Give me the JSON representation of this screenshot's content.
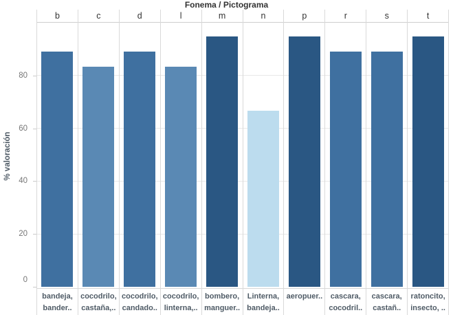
{
  "title": "Fonema / Pictograma",
  "y_axis": {
    "label": "% valoración",
    "ticks": [
      80,
      60,
      40,
      20,
      0
    ]
  },
  "chart_data": {
    "type": "bar",
    "title": "Fonema / Pictograma",
    "xlabel": "",
    "ylabel": "% valoración",
    "ylim": [
      0,
      100
    ],
    "grid": "on",
    "legend": "none",
    "categories": [
      "b",
      "c",
      "d",
      "l",
      "m",
      "n",
      "p",
      "r",
      "s",
      "t"
    ],
    "values": [
      89,
      83.3,
      89,
      83.3,
      94.7,
      66.7,
      94.7,
      89,
      89,
      94.7
    ],
    "bar_colors": [
      "#3f70a0",
      "#5a89b4",
      "#3f70a0",
      "#5a89b4",
      "#2a5783",
      "#bcdcee",
      "#2a5783",
      "#3f70a0",
      "#3f70a0",
      "#2a5783"
    ],
    "x_tick_labels": [
      [
        "bandeja,",
        "bander.."
      ],
      [
        "cocodrilo,",
        "castaña,.."
      ],
      [
        "cocodrilo,",
        "candado.."
      ],
      [
        "cocodrilo,",
        "linterna,.."
      ],
      [
        "bombero,",
        "manguer.."
      ],
      [
        "Linterna,",
        "bandeja.."
      ],
      [
        "aeropuer..",
        ""
      ],
      [
        "cascara,",
        "cocodril.."
      ],
      [
        "cascara,",
        "castañ.."
      ],
      [
        "ratoncito,",
        "insecto, .."
      ]
    ]
  },
  "colors": {
    "dark_bar": "#2a5783",
    "medium_bar": "#3f70a0",
    "medium_light_bar": "#5a89b4",
    "light_bar": "#bcdcee",
    "gridline": "#e8e8e8",
    "divider": "#d9d9d9",
    "title_text": "#323232",
    "axis_text": "#767676",
    "label_text": "#4f5b66"
  }
}
